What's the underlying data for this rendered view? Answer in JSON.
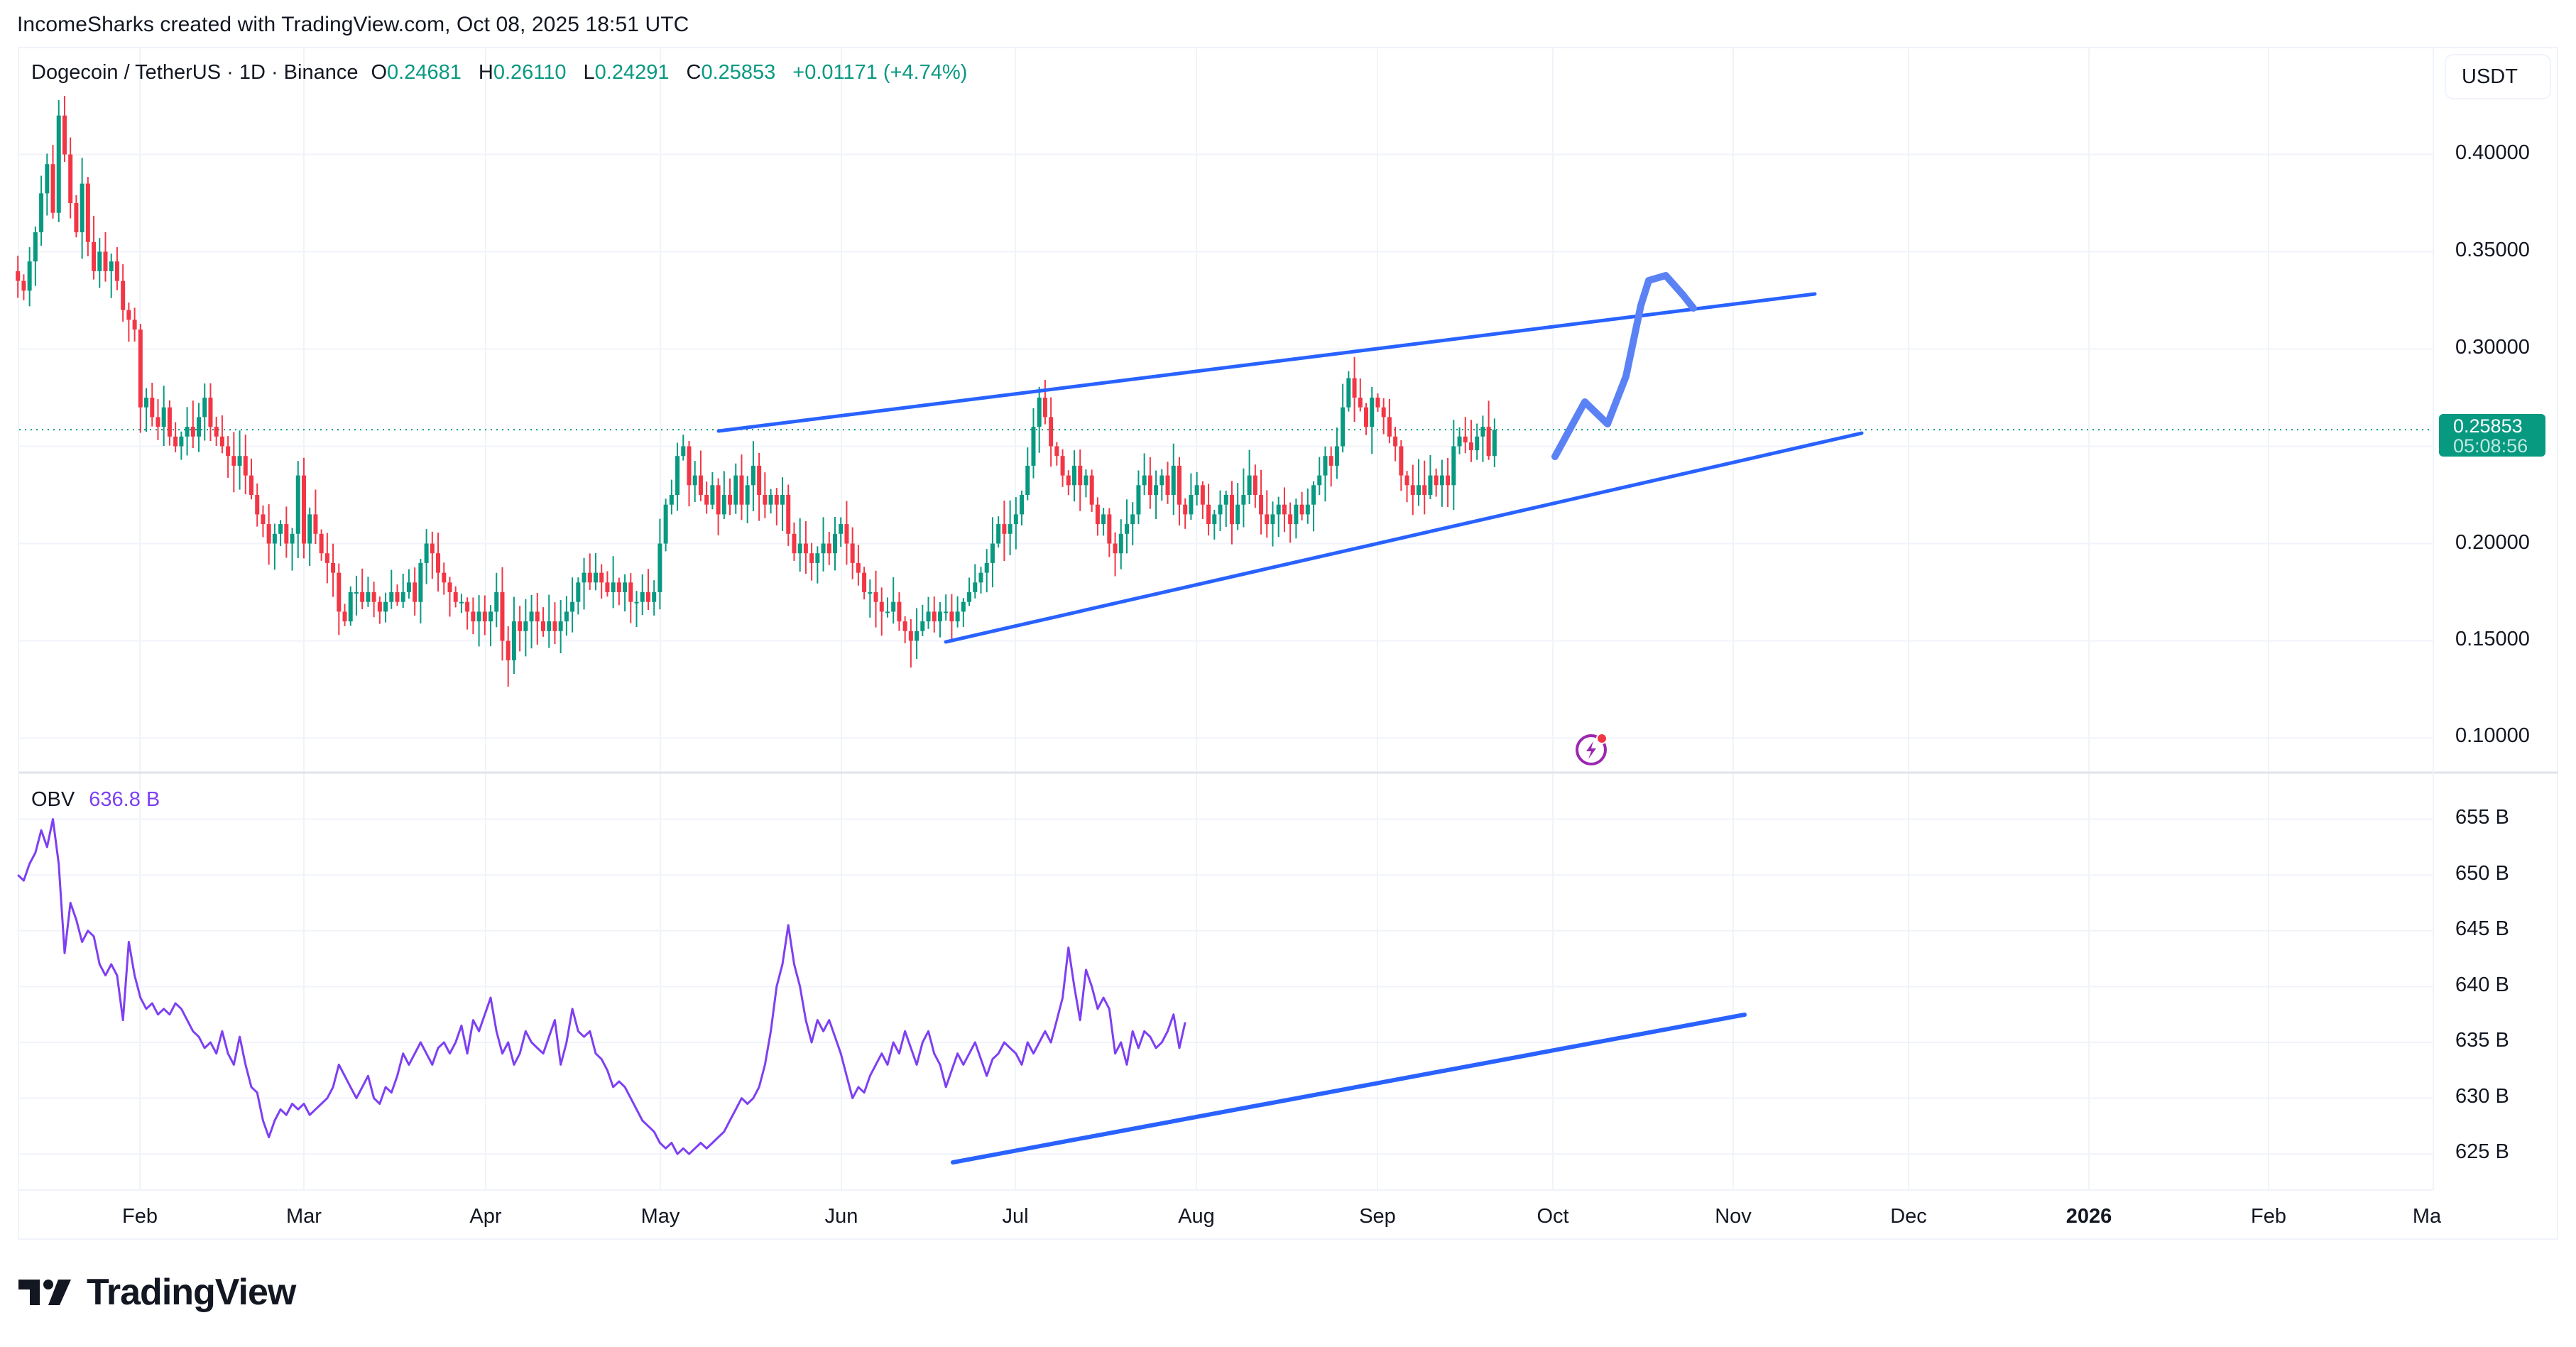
{
  "attribution": "IncomeSharks created with TradingView.com, Oct 08, 2025 18:51 UTC",
  "symbol": {
    "name": "Dogecoin / TetherUS · 1D · Binance",
    "open_key": "O",
    "open": "0.24681",
    "high_key": "H",
    "high": "0.26110",
    "low_key": "L",
    "low": "0.24291",
    "close_key": "C",
    "close": "0.25853",
    "change": "+0.01171 (+4.74%)"
  },
  "currency_button": "USDT",
  "last_price": {
    "price": "0.25853",
    "countdown": "05:08:56"
  },
  "price_axis": [
    "0.40000",
    "0.35000",
    "0.30000",
    "0.20000",
    "0.15000",
    "0.10000"
  ],
  "obv": {
    "name": "OBV",
    "value": "636.8 B"
  },
  "obv_axis": [
    "655 B",
    "650 B",
    "645 B",
    "640 B",
    "635 B",
    "630 B",
    "625 B"
  ],
  "time_axis": [
    "Feb",
    "Mar",
    "Apr",
    "May",
    "Jun",
    "Jul",
    "Aug",
    "Sep",
    "Oct",
    "Nov",
    "Dec",
    "2026",
    "Feb",
    "Ma"
  ],
  "brand": "TradingView",
  "colors": {
    "up": "#089981",
    "down": "#f23645",
    "trendline": "#2962ff",
    "forecast": "#5b82f5",
    "obv": "#7e3ff2",
    "grid": "#f0f3fa"
  },
  "chart_data": {
    "type": "candlestick",
    "title": "Dogecoin / TetherUS · 1D · Binance",
    "ylabel": "USDT",
    "ylim": [
      0.08,
      0.44
    ],
    "x_start": "2025-01-11",
    "x_end": "2025-10-08",
    "closes": [
      0.335,
      0.33,
      0.345,
      0.36,
      0.38,
      0.395,
      0.37,
      0.42,
      0.4,
      0.375,
      0.36,
      0.385,
      0.355,
      0.34,
      0.35,
      0.34,
      0.345,
      0.335,
      0.32,
      0.315,
      0.31,
      0.27,
      0.275,
      0.265,
      0.26,
      0.27,
      0.255,
      0.25,
      0.255,
      0.26,
      0.255,
      0.265,
      0.275,
      0.26,
      0.255,
      0.25,
      0.245,
      0.24,
      0.245,
      0.235,
      0.225,
      0.215,
      0.21,
      0.2,
      0.205,
      0.21,
      0.2,
      0.205,
      0.235,
      0.2,
      0.215,
      0.205,
      0.195,
      0.19,
      0.185,
      0.165,
      0.16,
      0.175,
      0.175,
      0.17,
      0.175,
      0.17,
      0.165,
      0.17,
      0.175,
      0.17,
      0.175,
      0.18,
      0.17,
      0.19,
      0.2,
      0.195,
      0.185,
      0.18,
      0.175,
      0.17,
      0.17,
      0.165,
      0.16,
      0.165,
      0.16,
      0.165,
      0.175,
      0.15,
      0.14,
      0.16,
      0.155,
      0.16,
      0.165,
      0.16,
      0.155,
      0.16,
      0.155,
      0.16,
      0.165,
      0.17,
      0.18,
      0.185,
      0.18,
      0.185,
      0.18,
      0.175,
      0.18,
      0.175,
      0.18,
      0.17,
      0.17,
      0.175,
      0.17,
      0.175,
      0.2,
      0.22,
      0.225,
      0.245,
      0.25,
      0.23,
      0.235,
      0.225,
      0.22,
      0.23,
      0.215,
      0.225,
      0.22,
      0.235,
      0.22,
      0.23,
      0.24,
      0.225,
      0.22,
      0.225,
      0.22,
      0.225,
      0.205,
      0.195,
      0.2,
      0.195,
      0.19,
      0.195,
      0.2,
      0.195,
      0.205,
      0.21,
      0.2,
      0.19,
      0.185,
      0.175,
      0.175,
      0.17,
      0.165,
      0.165,
      0.17,
      0.16,
      0.155,
      0.15,
      0.155,
      0.16,
      0.165,
      0.16,
      0.165,
      0.165,
      0.16,
      0.165,
      0.17,
      0.175,
      0.18,
      0.185,
      0.19,
      0.2,
      0.21,
      0.205,
      0.21,
      0.215,
      0.225,
      0.24,
      0.26,
      0.275,
      0.265,
      0.25,
      0.245,
      0.235,
      0.23,
      0.24,
      0.23,
      0.235,
      0.22,
      0.21,
      0.215,
      0.2,
      0.195,
      0.205,
      0.21,
      0.215,
      0.23,
      0.235,
      0.225,
      0.23,
      0.235,
      0.225,
      0.24,
      0.22,
      0.215,
      0.225,
      0.23,
      0.22,
      0.21,
      0.215,
      0.22,
      0.225,
      0.21,
      0.22,
      0.225,
      0.235,
      0.225,
      0.215,
      0.21,
      0.215,
      0.22,
      0.215,
      0.21,
      0.22,
      0.215,
      0.22,
      0.23,
      0.235,
      0.245,
      0.24,
      0.25,
      0.27,
      0.285,
      0.275,
      0.27,
      0.26,
      0.275,
      0.27,
      0.265,
      0.255,
      0.25,
      0.235,
      0.23,
      0.225,
      0.23,
      0.225,
      0.235,
      0.23,
      0.235,
      0.23,
      0.25,
      0.255,
      0.252,
      0.248,
      0.255,
      0.26,
      0.245,
      0.2585
    ],
    "trendlines": [
      {
        "name": "upper channel",
        "from": [
          "2025-05-10",
          0.257
        ],
        "to": [
          "2025-11-15",
          0.333
        ]
      },
      {
        "name": "lower channel",
        "from": [
          "2025-06-20",
          0.149
        ],
        "to": [
          "2025-11-23",
          0.268
        ]
      },
      {
        "name": "OBV support",
        "from": [
          "2025-06-20",
          624.5
        ],
        "to": [
          "2025-11-02",
          637.5
        ]
      }
    ],
    "forecast_path": [
      [
        2190,
        643
      ],
      [
        2232,
        566
      ],
      [
        2264,
        597
      ],
      [
        2290,
        530
      ],
      [
        2311,
        430
      ],
      [
        2322,
        395
      ],
      [
        2346,
        388
      ],
      [
        2370,
        415
      ],
      [
        2385,
        434
      ]
    ],
    "obv_series": [
      650,
      649.5,
      651,
      652,
      654,
      652.5,
      655,
      651,
      643,
      647.5,
      646,
      644,
      645,
      644.5,
      642,
      641,
      642,
      641,
      637,
      644,
      641,
      639,
      638,
      638.5,
      637.5,
      638,
      637.5,
      638.5,
      638,
      637,
      636,
      635.5,
      634.5,
      635,
      634,
      636,
      634,
      633,
      635.5,
      633,
      631,
      630.5,
      628,
      626.5,
      628,
      629,
      628.5,
      629.5,
      629,
      629.5,
      628.5,
      629,
      629.5,
      630,
      631,
      633,
      632,
      631,
      630,
      631,
      632,
      630,
      629.5,
      631,
      630.5,
      632,
      634,
      633,
      634,
      635,
      634,
      633,
      634.5,
      635,
      634,
      635,
      636.5,
      634,
      637,
      636,
      637.5,
      639,
      636,
      634,
      635,
      633,
      634,
      636,
      635,
      634.5,
      634,
      635.5,
      637,
      633,
      635,
      638,
      636,
      635.5,
      636,
      634,
      633.5,
      632.5,
      631,
      631.5,
      631,
      630,
      629,
      628,
      627.5,
      627,
      626,
      625.5,
      626,
      625,
      625.5,
      625,
      625.5,
      626,
      625.5,
      626,
      626.5,
      627,
      628,
      629,
      630,
      629.5,
      630,
      631,
      633,
      636,
      640,
      642,
      645.5,
      642,
      640,
      637,
      635,
      637,
      636,
      637,
      635.5,
      634,
      632,
      630,
      631,
      630.5,
      632,
      633,
      634,
      633,
      635,
      634,
      636,
      634.5,
      633,
      635,
      636,
      634,
      633,
      631,
      632.5,
      634,
      633,
      634,
      635,
      633.5,
      632,
      633.5,
      634,
      635,
      634.5,
      634,
      633,
      635,
      634,
      635,
      636,
      635,
      637,
      639,
      643.5,
      640,
      637,
      641.5,
      640,
      638,
      639,
      638,
      634,
      635,
      633,
      636,
      634.5,
      636,
      635.5,
      634.5,
      635,
      636,
      637.5,
      634.5,
      636.8
    ]
  }
}
